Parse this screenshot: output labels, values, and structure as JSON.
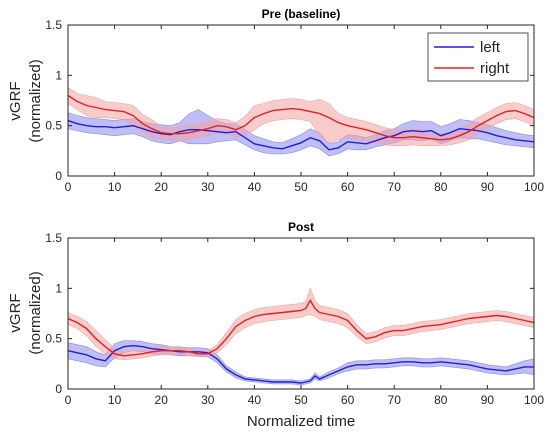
{
  "figure": {
    "xlabel_shared": "Normalized time"
  },
  "chart_data": [
    {
      "type": "line",
      "title": "Pre (baseline)",
      "xlabel": "",
      "ylabel_lines": [
        "vGRF",
        "(normalized)"
      ],
      "xlim": [
        0,
        100
      ],
      "ylim": [
        0,
        1.5
      ],
      "xticks": [
        0,
        10,
        20,
        30,
        40,
        50,
        60,
        70,
        80,
        90,
        100
      ],
      "yticks": [
        0,
        0.5,
        1,
        1.5
      ],
      "ytick_labels": [
        "0",
        "0.5",
        "1",
        "1.5"
      ],
      "grid": false,
      "legend": {
        "placement": "top-right",
        "entries": [
          "left",
          "right"
        ]
      },
      "x": [
        0,
        2,
        4,
        6,
        8,
        10,
        12,
        14,
        16,
        18,
        20,
        22,
        24,
        26,
        28,
        30,
        32,
        34,
        36,
        38,
        40,
        42,
        44,
        46,
        48,
        50,
        52,
        54,
        56,
        58,
        60,
        62,
        64,
        66,
        68,
        70,
        72,
        74,
        76,
        78,
        80,
        82,
        84,
        86,
        88,
        90,
        92,
        94,
        96,
        98,
        100
      ],
      "series": [
        {
          "name": "left",
          "color": "#1f1fdc",
          "band_color": "#8a8aee",
          "mean": [
            0.55,
            0.52,
            0.5,
            0.49,
            0.49,
            0.48,
            0.49,
            0.5,
            0.47,
            0.44,
            0.42,
            0.41,
            0.44,
            0.46,
            0.46,
            0.45,
            0.44,
            0.43,
            0.44,
            0.38,
            0.32,
            0.3,
            0.28,
            0.27,
            0.3,
            0.33,
            0.38,
            0.35,
            0.26,
            0.28,
            0.34,
            0.33,
            0.32,
            0.35,
            0.38,
            0.4,
            0.44,
            0.45,
            0.44,
            0.45,
            0.4,
            0.43,
            0.47,
            0.46,
            0.45,
            0.43,
            0.4,
            0.38,
            0.36,
            0.35,
            0.34
          ],
          "lower": [
            0.47,
            0.45,
            0.43,
            0.42,
            0.41,
            0.4,
            0.41,
            0.42,
            0.39,
            0.35,
            0.33,
            0.32,
            0.35,
            0.32,
            0.32,
            0.32,
            0.34,
            0.35,
            0.36,
            0.31,
            0.26,
            0.23,
            0.22,
            0.22,
            0.23,
            0.26,
            0.3,
            0.27,
            0.2,
            0.22,
            0.27,
            0.26,
            0.26,
            0.29,
            0.31,
            0.33,
            0.36,
            0.36,
            0.35,
            0.37,
            0.32,
            0.35,
            0.38,
            0.37,
            0.37,
            0.35,
            0.33,
            0.31,
            0.3,
            0.29,
            0.28
          ],
          "upper": [
            0.63,
            0.6,
            0.58,
            0.57,
            0.56,
            0.55,
            0.56,
            0.57,
            0.54,
            0.52,
            0.51,
            0.5,
            0.53,
            0.62,
            0.66,
            0.6,
            0.55,
            0.52,
            0.52,
            0.46,
            0.4,
            0.37,
            0.34,
            0.33,
            0.37,
            0.41,
            0.47,
            0.43,
            0.32,
            0.34,
            0.41,
            0.4,
            0.38,
            0.41,
            0.45,
            0.47,
            0.52,
            0.55,
            0.54,
            0.54,
            0.49,
            0.52,
            0.56,
            0.55,
            0.53,
            0.51,
            0.48,
            0.45,
            0.43,
            0.41,
            0.4
          ]
        },
        {
          "name": "right",
          "color": "#e02222",
          "band_color": "#f4a3a3",
          "mean": [
            0.8,
            0.74,
            0.7,
            0.68,
            0.66,
            0.65,
            0.64,
            0.6,
            0.52,
            0.47,
            0.43,
            0.42,
            0.42,
            0.43,
            0.45,
            0.47,
            0.5,
            0.49,
            0.46,
            0.5,
            0.58,
            0.62,
            0.65,
            0.66,
            0.67,
            0.66,
            0.64,
            0.62,
            0.58,
            0.53,
            0.5,
            0.48,
            0.46,
            0.43,
            0.4,
            0.38,
            0.38,
            0.39,
            0.38,
            0.37,
            0.36,
            0.37,
            0.4,
            0.44,
            0.5,
            0.55,
            0.6,
            0.64,
            0.65,
            0.62,
            0.58
          ],
          "lower": [
            0.72,
            0.66,
            0.6,
            0.58,
            0.58,
            0.57,
            0.56,
            0.5,
            0.43,
            0.38,
            0.37,
            0.36,
            0.35,
            0.36,
            0.38,
            0.4,
            0.43,
            0.42,
            0.39,
            0.41,
            0.46,
            0.52,
            0.55,
            0.56,
            0.57,
            0.56,
            0.54,
            0.4,
            0.33,
            0.36,
            0.38,
            0.36,
            0.35,
            0.33,
            0.31,
            0.3,
            0.3,
            0.31,
            0.3,
            0.3,
            0.3,
            0.31,
            0.33,
            0.36,
            0.42,
            0.47,
            0.52,
            0.56,
            0.57,
            0.54,
            0.5
          ],
          "upper": [
            0.88,
            0.82,
            0.8,
            0.78,
            0.74,
            0.73,
            0.72,
            0.7,
            0.61,
            0.56,
            0.49,
            0.48,
            0.49,
            0.5,
            0.52,
            0.54,
            0.57,
            0.56,
            0.53,
            0.59,
            0.7,
            0.72,
            0.75,
            0.76,
            0.77,
            0.76,
            0.74,
            0.76,
            0.72,
            0.62,
            0.58,
            0.56,
            0.54,
            0.51,
            0.48,
            0.46,
            0.46,
            0.47,
            0.46,
            0.44,
            0.42,
            0.43,
            0.47,
            0.52,
            0.58,
            0.63,
            0.68,
            0.72,
            0.73,
            0.7,
            0.66
          ]
        }
      ]
    },
    {
      "type": "line",
      "title": "Post",
      "xlabel": "Normalized time",
      "ylabel_lines": [
        "vGRF",
        "(normalized)"
      ],
      "xlim": [
        0,
        100
      ],
      "ylim": [
        0,
        1.5
      ],
      "xticks": [
        0,
        10,
        20,
        30,
        40,
        50,
        60,
        70,
        80,
        90,
        100
      ],
      "yticks": [
        0,
        0.5,
        1,
        1.5
      ],
      "ytick_labels": [
        "0",
        "0.5",
        "1",
        "1.5"
      ],
      "grid": false,
      "legend": null,
      "x": [
        0,
        2,
        4,
        6,
        8,
        10,
        12,
        14,
        16,
        18,
        20,
        22,
        24,
        26,
        28,
        30,
        32,
        34,
        36,
        38,
        40,
        42,
        44,
        46,
        48,
        50,
        51,
        52,
        53,
        54,
        56,
        58,
        60,
        62,
        64,
        66,
        68,
        70,
        72,
        74,
        76,
        78,
        80,
        82,
        84,
        86,
        88,
        90,
        92,
        94,
        96,
        98,
        100
      ],
      "series": [
        {
          "name": "left",
          "color": "#1f1fdc",
          "band_color": "#8a8aee",
          "mean": [
            0.38,
            0.36,
            0.34,
            0.3,
            0.28,
            0.38,
            0.42,
            0.43,
            0.42,
            0.4,
            0.39,
            0.38,
            0.37,
            0.37,
            0.37,
            0.36,
            0.3,
            0.2,
            0.14,
            0.1,
            0.09,
            0.08,
            0.07,
            0.07,
            0.07,
            0.06,
            0.07,
            0.08,
            0.13,
            0.1,
            0.14,
            0.18,
            0.22,
            0.24,
            0.24,
            0.25,
            0.25,
            0.26,
            0.27,
            0.27,
            0.26,
            0.26,
            0.27,
            0.26,
            0.25,
            0.24,
            0.22,
            0.2,
            0.19,
            0.18,
            0.2,
            0.22,
            0.22
          ],
          "lower": [
            0.3,
            0.28,
            0.26,
            0.23,
            0.22,
            0.31,
            0.36,
            0.38,
            0.37,
            0.35,
            0.34,
            0.34,
            0.33,
            0.33,
            0.33,
            0.32,
            0.26,
            0.17,
            0.11,
            0.08,
            0.07,
            0.06,
            0.05,
            0.05,
            0.05,
            0.04,
            0.05,
            0.06,
            0.1,
            0.08,
            0.11,
            0.15,
            0.18,
            0.2,
            0.2,
            0.21,
            0.21,
            0.22,
            0.23,
            0.23,
            0.22,
            0.22,
            0.23,
            0.22,
            0.21,
            0.2,
            0.18,
            0.16,
            0.15,
            0.14,
            0.15,
            0.16,
            0.14
          ],
          "upper": [
            0.46,
            0.44,
            0.42,
            0.37,
            0.34,
            0.45,
            0.48,
            0.48,
            0.47,
            0.45,
            0.44,
            0.42,
            0.41,
            0.41,
            0.41,
            0.4,
            0.34,
            0.23,
            0.17,
            0.12,
            0.11,
            0.1,
            0.09,
            0.09,
            0.09,
            0.08,
            0.09,
            0.1,
            0.16,
            0.12,
            0.17,
            0.21,
            0.26,
            0.28,
            0.28,
            0.29,
            0.29,
            0.3,
            0.31,
            0.31,
            0.3,
            0.3,
            0.31,
            0.3,
            0.29,
            0.28,
            0.26,
            0.24,
            0.23,
            0.22,
            0.25,
            0.28,
            0.3
          ]
        },
        {
          "name": "right",
          "color": "#e02222",
          "band_color": "#f4a3a3",
          "mean": [
            0.7,
            0.66,
            0.6,
            0.5,
            0.42,
            0.35,
            0.33,
            0.34,
            0.35,
            0.37,
            0.38,
            0.38,
            0.38,
            0.37,
            0.35,
            0.35,
            0.4,
            0.5,
            0.62,
            0.68,
            0.72,
            0.74,
            0.75,
            0.76,
            0.77,
            0.78,
            0.8,
            0.88,
            0.8,
            0.76,
            0.74,
            0.72,
            0.68,
            0.58,
            0.5,
            0.52,
            0.56,
            0.58,
            0.58,
            0.6,
            0.62,
            0.63,
            0.64,
            0.66,
            0.68,
            0.7,
            0.71,
            0.72,
            0.73,
            0.72,
            0.7,
            0.68,
            0.66
          ],
          "lower": [
            0.64,
            0.6,
            0.53,
            0.42,
            0.35,
            0.3,
            0.29,
            0.3,
            0.31,
            0.33,
            0.34,
            0.34,
            0.34,
            0.33,
            0.32,
            0.32,
            0.36,
            0.44,
            0.55,
            0.61,
            0.65,
            0.67,
            0.68,
            0.69,
            0.7,
            0.71,
            0.73,
            0.74,
            0.72,
            0.69,
            0.67,
            0.65,
            0.61,
            0.52,
            0.45,
            0.47,
            0.51,
            0.53,
            0.53,
            0.55,
            0.57,
            0.58,
            0.59,
            0.61,
            0.63,
            0.65,
            0.66,
            0.67,
            0.68,
            0.67,
            0.65,
            0.63,
            0.61
          ],
          "upper": [
            0.76,
            0.72,
            0.67,
            0.58,
            0.49,
            0.4,
            0.37,
            0.38,
            0.39,
            0.41,
            0.42,
            0.42,
            0.42,
            0.41,
            0.38,
            0.38,
            0.44,
            0.56,
            0.69,
            0.75,
            0.79,
            0.81,
            0.82,
            0.83,
            0.84,
            0.85,
            0.87,
            1.0,
            0.88,
            0.83,
            0.81,
            0.79,
            0.75,
            0.64,
            0.55,
            0.57,
            0.61,
            0.63,
            0.63,
            0.65,
            0.67,
            0.68,
            0.69,
            0.71,
            0.73,
            0.75,
            0.76,
            0.77,
            0.78,
            0.77,
            0.75,
            0.73,
            0.71
          ]
        }
      ]
    }
  ]
}
